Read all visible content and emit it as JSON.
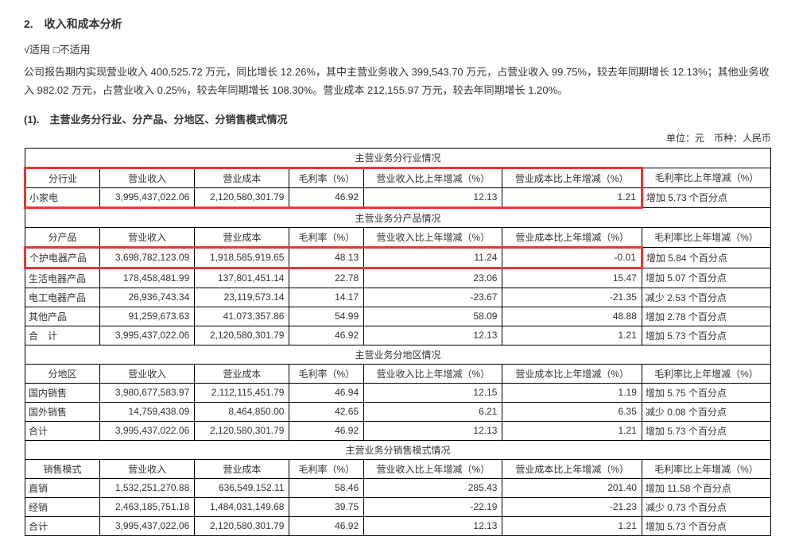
{
  "heading": "2.　收入和成本分析",
  "applicable": "√适用 □不适用",
  "paragraph": "公司报告期内实现营业收入 400,525.72 万元，同比增长 12.26%，其中主营业务收入 399,543.70 万元，占营业收入 99.75%，较去年同期增长 12.13%；其他业务收入 982.02 万元，占营业收入 0.25%，较去年同期增长 108.30%。营业成本 212,155.97 万元，较去年同期增长 1.20%。",
  "subsection": "(1).　主营业务分行业、分产品、分地区、分销售模式情况",
  "unit": "单位：元　币种：人民币",
  "columns": {
    "c1_industry": "分行业",
    "c1_product": "分产品",
    "c1_region": "分地区",
    "c1_mode": "销售模式",
    "c2": "营业收入",
    "c3": "营业成本",
    "c4": "毛利率（%）",
    "c5": "营业收入比上年增减（%）",
    "c6": "营业成本比上年增减（%）",
    "c7": "毛利率比上年增减（%）"
  },
  "sections": {
    "industry": "主营业务分行业情况",
    "product": "主营业务分产品情况",
    "region": "主营业务分地区情况",
    "mode": "主营业务分销售模式情况"
  },
  "industry_rows": [
    {
      "label": "小家电",
      "rev": "3,995,437,022.06",
      "cost": "2,120,580,301.79",
      "gm": "46.92",
      "rev_yoy": "12.13",
      "cost_yoy": "1.21",
      "gm_yoy": "增加 5.73 个百分点"
    }
  ],
  "product_rows": [
    {
      "label": "个护电器产品",
      "rev": "3,698,782,123.09",
      "cost": "1,918,585,919.65",
      "gm": "48.13",
      "rev_yoy": "11.24",
      "cost_yoy": "-0.01",
      "gm_yoy": "增加 5.84 个百分点"
    },
    {
      "label": "生活电器产品",
      "rev": "178,458,481.99",
      "cost": "137,801,451.14",
      "gm": "22.78",
      "rev_yoy": "23.06",
      "cost_yoy": "15.47",
      "gm_yoy": "增加 5.07 个百分点"
    },
    {
      "label": "电工电器产品",
      "rev": "26,936,743.34",
      "cost": "23,119,573.14",
      "gm": "14.17",
      "rev_yoy": "-23.67",
      "cost_yoy": "-21.35",
      "gm_yoy": "减少 2.53 个百分点"
    },
    {
      "label": "其他产品",
      "rev": "91,259,673.63",
      "cost": "41,073,357.86",
      "gm": "54.99",
      "rev_yoy": "58.09",
      "cost_yoy": "48.88",
      "gm_yoy": "增加 2.78 个百分点"
    },
    {
      "label": "合　计",
      "rev": "3,995,437,022.06",
      "cost": "2,120,580,301.79",
      "gm": "46.92",
      "rev_yoy": "12.13",
      "cost_yoy": "1.21",
      "gm_yoy": "增加 5.73 个百分点"
    }
  ],
  "region_rows": [
    {
      "label": "国内销售",
      "rev": "3,980,677,583.97",
      "cost": "2,112,115,451.79",
      "gm": "46.94",
      "rev_yoy": "12.15",
      "cost_yoy": "1.19",
      "gm_yoy": "增加 5.75 个百分点"
    },
    {
      "label": "国外销售",
      "rev": "14,759,438.09",
      "cost": "8,464,850.00",
      "gm": "42.65",
      "rev_yoy": "6.21",
      "cost_yoy": "6.35",
      "gm_yoy": "减少 0.08 个百分点"
    },
    {
      "label": "合计",
      "rev": "3,995,437,022.06",
      "cost": "2,120,580,301.79",
      "gm": "46.92",
      "rev_yoy": "12.13",
      "cost_yoy": "1.21",
      "gm_yoy": "增加 5.73 个百分点"
    }
  ],
  "mode_rows": [
    {
      "label": "直销",
      "rev": "1,532,251,270.88",
      "cost": "636,549,152.11",
      "gm": "58.46",
      "rev_yoy": "285.43",
      "cost_yoy": "201.40",
      "gm_yoy": "增加 11.58 个百分点"
    },
    {
      "label": "经销",
      "rev": "2,463,185,751.18",
      "cost": "1,484,031,149.68",
      "gm": "39.75",
      "rev_yoy": "-22.19",
      "cost_yoy": "-21.23",
      "gm_yoy": "减少 0.73 个百分点"
    },
    {
      "label": "合计",
      "rev": "3,995,437,022.06",
      "cost": "2,120,580,301.79",
      "gm": "46.92",
      "rev_yoy": "12.13",
      "cost_yoy": "1.21",
      "gm_yoy": "增加 5.73 个百分点"
    }
  ]
}
